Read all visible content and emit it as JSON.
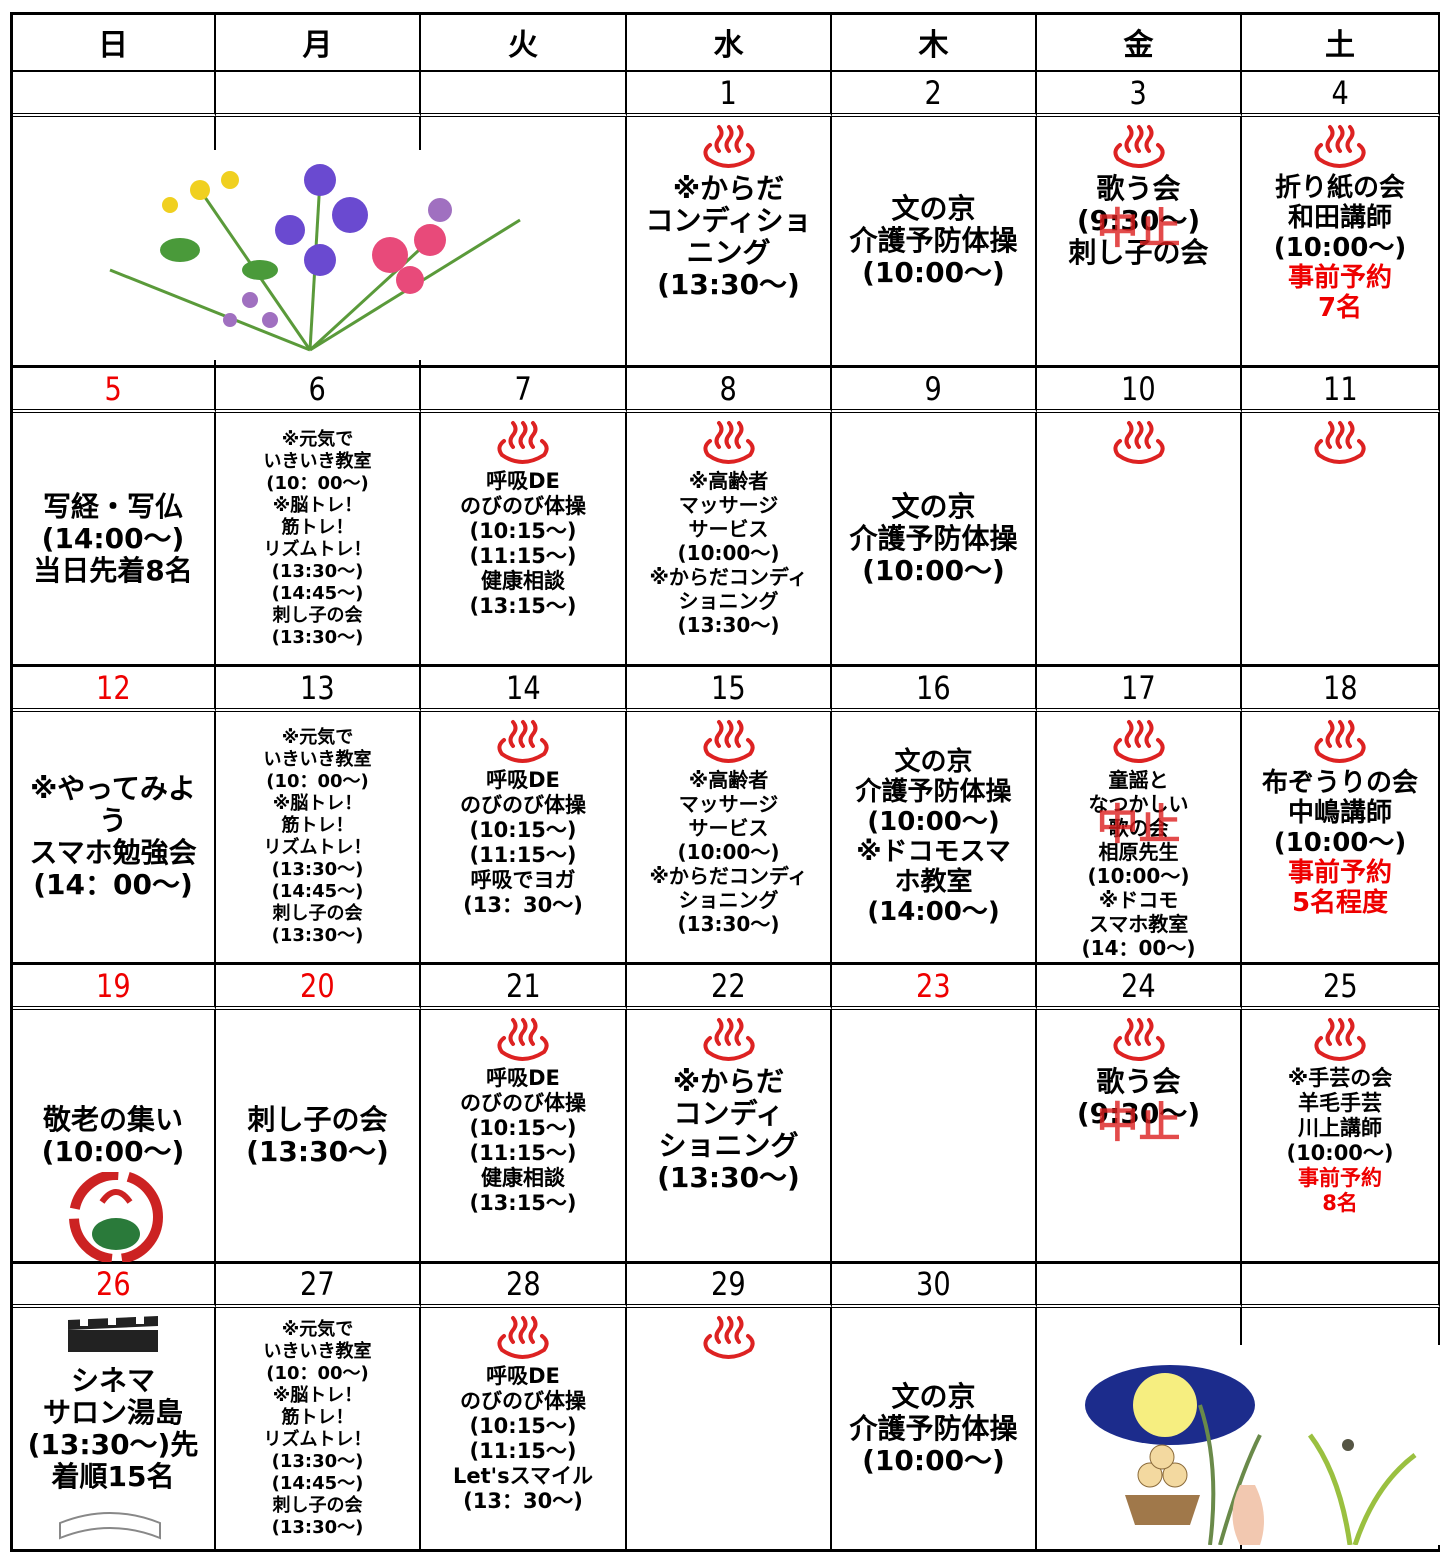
{
  "header": {
    "weekdays": [
      "日",
      "月",
      "火",
      "水",
      "木",
      "金",
      "土"
    ]
  },
  "weeks": [
    {
      "dates": [
        null,
        null,
        null,
        1,
        2,
        3,
        4
      ],
      "cells": [
        [],
        [],
        [],
        [
          "※からだ",
          "コンディショ",
          "ニング",
          "(13:30〜)"
        ],
        [
          "文の京",
          "介護予防体操",
          "(10:00〜)"
        ],
        {
          "lines": [
            "歌う会",
            "(9:30〜)",
            "刺し子の会"
          ],
          "overlay": "中止"
        },
        [
          "折り紙の会",
          "和田講師",
          "(10:00〜)",
          "事前予約",
          "7名"
        ]
      ]
    },
    {
      "dates": [
        5,
        6,
        7,
        8,
        9,
        10,
        11
      ],
      "cells": [
        [
          "写経・写仏",
          "(14:00〜)",
          "当日先着8名"
        ],
        [
          "※元気で",
          "いきいき教室",
          "(10：00〜)",
          "※脳トレ！",
          "筋トレ！",
          "リズムトレ！",
          "(13:30〜)",
          "(14:45〜)",
          "刺し子の会",
          "(13:30〜)"
        ],
        [
          "呼吸DE",
          "のびのび体操",
          "(10:15〜)",
          "(11:15〜)",
          "健康相談",
          "(13:15〜)"
        ],
        [
          "※高齢者",
          "マッサージ",
          "サービス",
          "(10:00〜)",
          "※からだコンディ",
          "ショニング",
          "(13:30〜)"
        ],
        [
          "文の京",
          "介護予防体操",
          "(10:00〜)"
        ],
        [],
        []
      ]
    },
    {
      "dates": [
        12,
        13,
        14,
        15,
        16,
        17,
        18
      ],
      "cells": [
        [
          "※やってみよ",
          "う",
          "スマホ勉強会",
          "(14：00〜)"
        ],
        [
          "※元気で",
          "いきいき教室",
          "(10：00〜)",
          "※脳トレ！",
          "筋トレ！",
          "リズムトレ！",
          "(13:30〜)",
          "(14:45〜)",
          "刺し子の会",
          "(13:30〜)"
        ],
        [
          "呼吸DE",
          "のびのび体操",
          "(10:15〜)",
          "(11:15〜)",
          "呼吸でヨガ",
          "(13：30〜)"
        ],
        [
          "※高齢者",
          "マッサージ",
          "サービス",
          "(10:00〜)",
          "※からだコンディ",
          "ショニング",
          "(13:30〜)"
        ],
        [
          "文の京",
          "介護予防体操",
          "(10:00〜)",
          "※ドコモスマ",
          "ホ教室",
          "(14:00〜)"
        ],
        {
          "lines": [
            "童謡と",
            "なつかしい",
            "歌の会",
            "相原先生",
            "(10:00〜)",
            "※ドコモ",
            "スマホ教室",
            "(14：00〜)"
          ],
          "overlay": "中止"
        },
        [
          "布ぞうりの会",
          "中嶋講師",
          "(10:00〜)",
          "事前予約",
          "5名程度"
        ]
      ]
    },
    {
      "dates": [
        19,
        20,
        21,
        22,
        23,
        24,
        25
      ],
      "cells": [
        [
          "敬老の集い",
          "(10:00〜)"
        ],
        [
          "刺し子の会",
          "(13:30〜)"
        ],
        [
          "呼吸DE",
          "のびのび体操",
          "(10:15〜)",
          "(11:15〜)",
          "健康相談",
          "(13:15〜)"
        ],
        [
          "※からだ",
          "コンディ",
          "ショニング",
          "(13:30〜)"
        ],
        [],
        {
          "lines": [
            "歌う会",
            "(9:30〜)"
          ],
          "overlay": "中止"
        },
        [
          "※手芸の会",
          "羊毛手芸",
          "川上講師",
          "(10:00〜)",
          "事前予約",
          "8名"
        ]
      ]
    },
    {
      "dates": [
        26,
        27,
        28,
        29,
        30,
        null,
        null
      ],
      "cells": [
        [
          "シネマ",
          "サロン湯島",
          "(13:30〜)先",
          "着順15名"
        ],
        [
          "※元気で",
          "いきいき教室",
          "(10：00〜)",
          "※脳トレ！",
          "筋トレ！",
          "リズムトレ！",
          "(13:30〜)",
          "(14:45〜)",
          "刺し子の会",
          "(13:30〜)"
        ],
        [
          "呼吸DE",
          "のびのび体操",
          "(10:15〜)",
          "(11:15〜)",
          "Let'sスマイル",
          "(13：30〜)"
        ],
        [],
        [
          "文の京",
          "介護予防体操",
          "(10:00〜)"
        ],
        [],
        []
      ]
    }
  ]
}
